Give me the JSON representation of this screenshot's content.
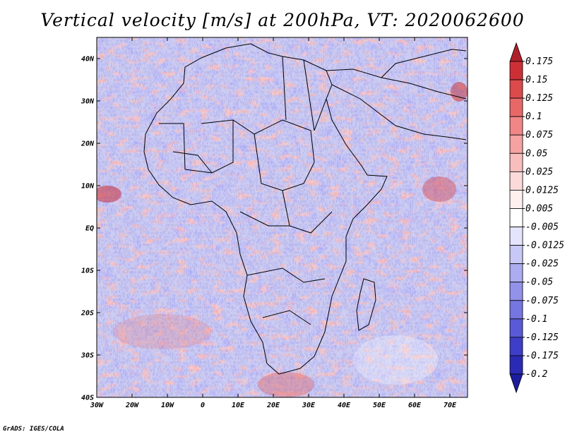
{
  "title": "Vertical velocity [m/s] at 200hPa, VT: 2020062600",
  "credit": "GrADS: IGES/COLA",
  "map": {
    "lon_range": [
      -30,
      75
    ],
    "lat_range": [
      -40,
      45
    ],
    "lon_ticks": [
      {
        "value": -30,
        "label": "30W"
      },
      {
        "value": -20,
        "label": "20W"
      },
      {
        "value": -10,
        "label": "10W"
      },
      {
        "value": 0,
        "label": "0"
      },
      {
        "value": 10,
        "label": "10E"
      },
      {
        "value": 20,
        "label": "20E"
      },
      {
        "value": 30,
        "label": "30E"
      },
      {
        "value": 40,
        "label": "40E"
      },
      {
        "value": 50,
        "label": "50E"
      },
      {
        "value": 60,
        "label": "60E"
      },
      {
        "value": 70,
        "label": "70E"
      }
    ],
    "lat_ticks": [
      {
        "value": 40,
        "label": "40N"
      },
      {
        "value": 30,
        "label": "30N"
      },
      {
        "value": 20,
        "label": "20N"
      },
      {
        "value": 10,
        "label": "10N"
      },
      {
        "value": 0,
        "label": "EQ"
      },
      {
        "value": -10,
        "label": "10S"
      },
      {
        "value": -20,
        "label": "20S"
      },
      {
        "value": -30,
        "label": "30S"
      },
      {
        "value": -40,
        "label": "40S"
      }
    ]
  },
  "colorbar": {
    "labels": [
      "0.175",
      "0.15",
      "0.125",
      "0.1",
      "0.075",
      "0.05",
      "0.025",
      "0.0125",
      "0.005",
      "-0.005",
      "-0.0125",
      "-0.025",
      "-0.05",
      "-0.075",
      "-0.1",
      "-0.125",
      "-0.175",
      "-0.2"
    ],
    "colors": [
      "#b0202a",
      "#cc3036",
      "#dc4a4c",
      "#e86868",
      "#f08686",
      "#f4a2a2",
      "#f8bebe",
      "#fcdada",
      "#fff0f0",
      "#ffffff",
      "#e4e4fc",
      "#c8c8f6",
      "#acacf0",
      "#9292ea",
      "#7676e0",
      "#5a5ad6",
      "#3e3ec8",
      "#2a2ab4",
      "#1c1c9c"
    ]
  }
}
